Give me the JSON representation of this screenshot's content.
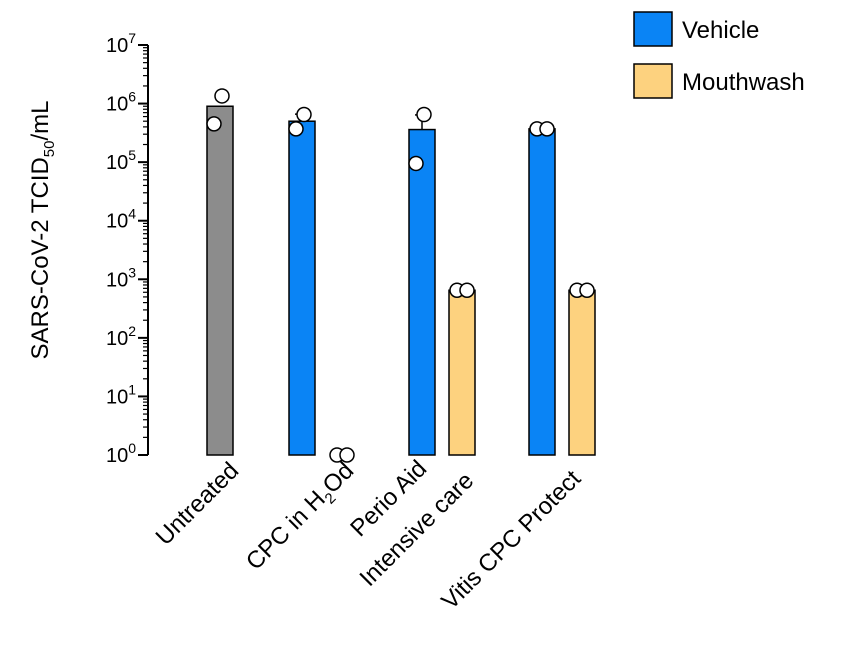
{
  "chart_data": {
    "type": "bar",
    "yscale": "log",
    "ylim": [
      1,
      10000000
    ],
    "ylabel": {
      "pre": "SARS-CoV-2 TCID",
      "sub": "50",
      "post": "/mL"
    },
    "yticks": [
      {
        "value": 1,
        "base": "10",
        "exp": "0"
      },
      {
        "value": 10,
        "base": "10",
        "exp": "1"
      },
      {
        "value": 100,
        "base": "10",
        "exp": "2"
      },
      {
        "value": 1000,
        "base": "10",
        "exp": "3"
      },
      {
        "value": 10000,
        "base": "10",
        "exp": "4"
      },
      {
        "value": 100000,
        "base": "10",
        "exp": "5"
      },
      {
        "value": 1000000,
        "base": "10",
        "exp": "6"
      },
      {
        "value": 10000000,
        "base": "10",
        "exp": "7"
      }
    ],
    "legend": {
      "placement": "top-right",
      "entries": [
        {
          "label": "Vehicle",
          "color": "#0a84f5"
        },
        {
          "label": "Mouthwash",
          "color": "#fdd27f"
        }
      ]
    },
    "colors": {
      "untreated": "#8c8c8c",
      "vehicle": "#0a84f5",
      "mouthwash": "#fdd27f"
    },
    "groups": [
      {
        "label_lines": [
          {
            "pre": "Untreated"
          }
        ],
        "bars": [
          {
            "kind": "untreated",
            "value": 900000,
            "error": 0,
            "points": [
              1350000,
              450000
            ]
          }
        ]
      },
      {
        "label_lines": [
          {
            "pre": "CPC in H",
            "sub": "2",
            "post": "Od"
          }
        ],
        "bars": [
          {
            "kind": "vehicle",
            "value": 500000,
            "error": 160000,
            "points": [
              650000,
              370000
            ]
          },
          {
            "kind": "mouthwash",
            "value": 1,
            "error": 0,
            "points": [
              1,
              1
            ]
          }
        ]
      },
      {
        "label_lines": [
          {
            "pre": "Perio Aid"
          },
          {
            "pre": "Intensive  care"
          }
        ],
        "bars": [
          {
            "kind": "vehicle",
            "value": 360000,
            "error": 280000,
            "points": [
              650000,
              95000
            ]
          },
          {
            "kind": "mouthwash",
            "value": 650,
            "error": 0,
            "points": [
              650,
              650
            ]
          }
        ]
      },
      {
        "label_lines": [
          {
            "pre": "Vitis CPC Protect"
          }
        ],
        "bars": [
          {
            "kind": "vehicle",
            "value": 370000,
            "error": 0,
            "points": [
              370000,
              370000
            ]
          },
          {
            "kind": "mouthwash",
            "value": 650,
            "error": 0,
            "points": [
              650,
              650
            ]
          }
        ]
      }
    ]
  }
}
